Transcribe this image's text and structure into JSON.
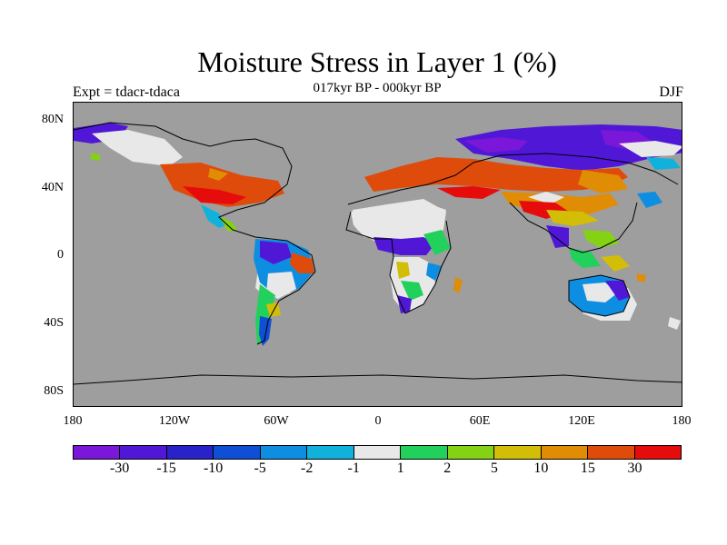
{
  "title": "Moisture Stress in Layer 1 (%)",
  "subtitle": "017kyr BP - 000kyr BP",
  "left_label": "Expt = tdacr-tdaca",
  "right_label": "DJF",
  "colors": {
    "background": "#ffffff",
    "missing_ocean": "#9e9e9e",
    "coast": "#000000"
  },
  "map": {
    "lat_labels": [
      "80N",
      "40N",
      "0",
      "40S",
      "80S"
    ],
    "lon_labels": [
      "180",
      "120W",
      "60W",
      "0",
      "60E",
      "120E",
      "180"
    ]
  },
  "colorbar": {
    "colors": [
      "#7a17d9",
      "#5018d6",
      "#2a22c9",
      "#0e4fd6",
      "#0e8ee0",
      "#10b2dc",
      "#e8e8e8",
      "#21d15b",
      "#83d214",
      "#d2bd07",
      "#e08c05",
      "#df4b0a",
      "#e60c0c"
    ],
    "labels": [
      "-30",
      "-15",
      "-10",
      "-5",
      "-2",
      "-1",
      "1",
      "2",
      "5",
      "10",
      "15",
      "30"
    ]
  }
}
